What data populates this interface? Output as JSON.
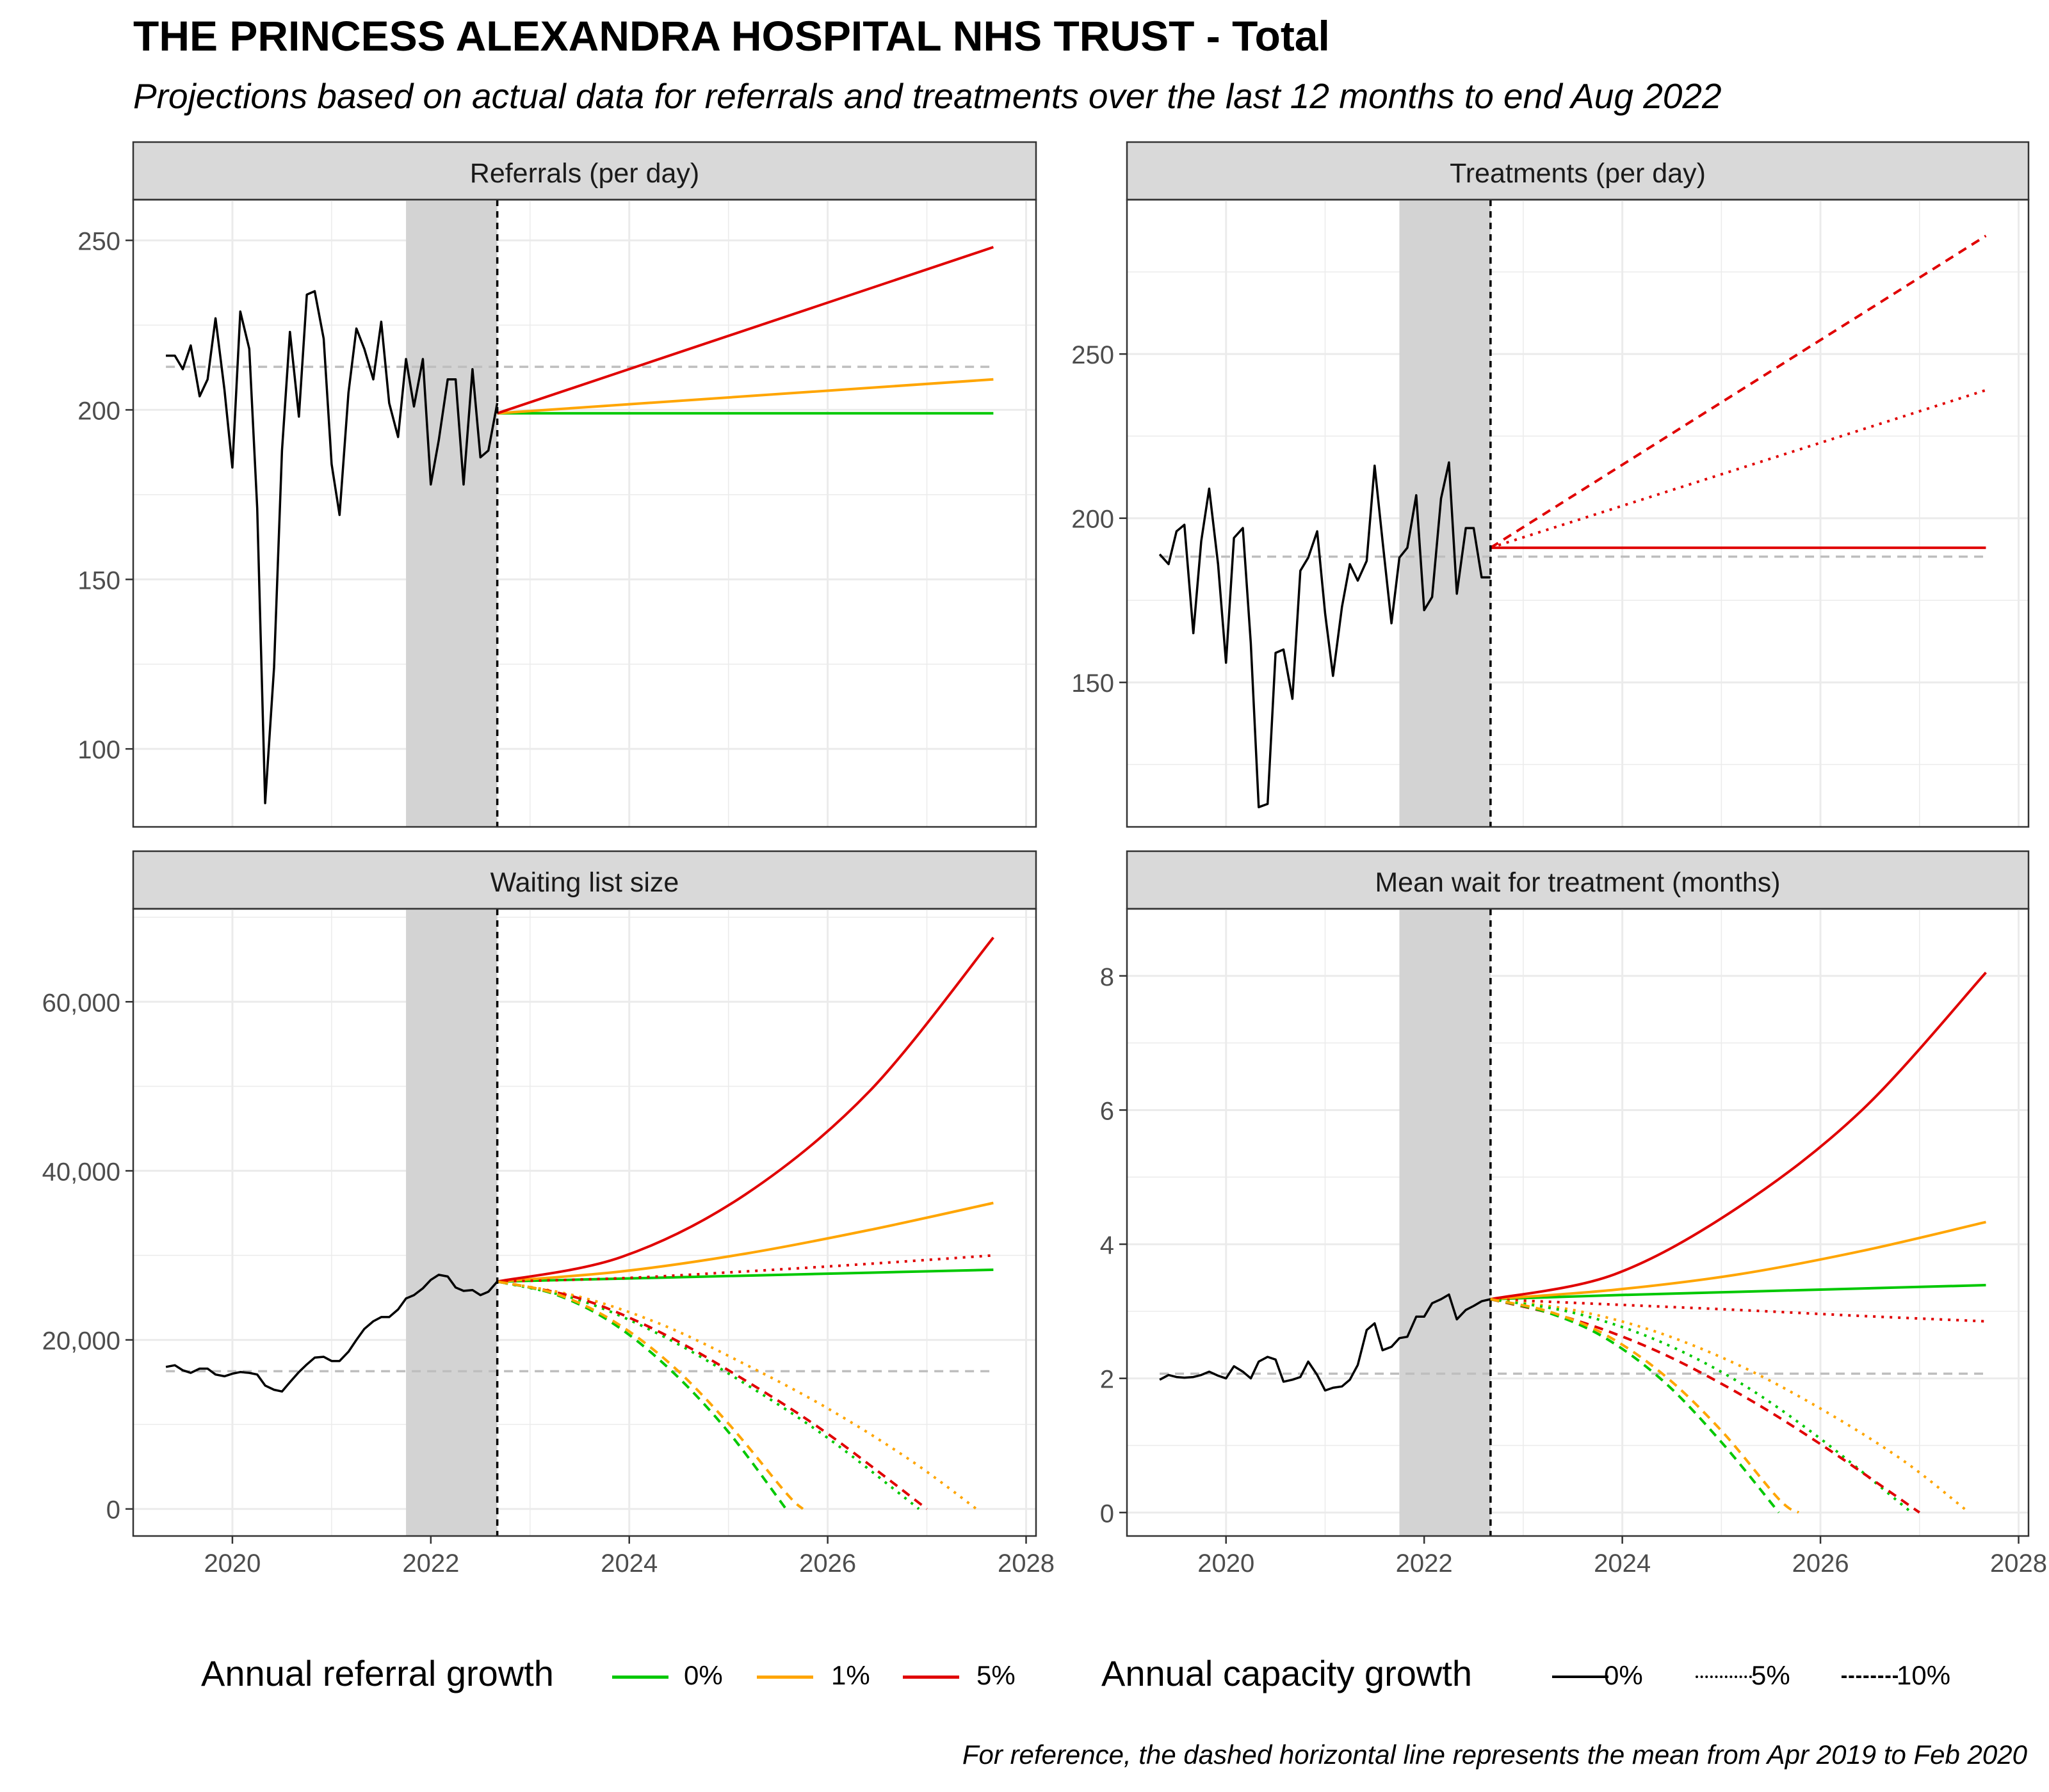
{
  "title": "THE PRINCESS ALEXANDRA HOSPITAL NHS TRUST - Total",
  "subtitle": "Projections based on actual data for referrals and treatments over the last 12 months to end Aug 2022",
  "caption": "For reference, the dashed horizontal line represents the mean from Apr 2019 to Feb 2020",
  "legend": {
    "referral_title": "Annual referral growth",
    "referral_items": [
      {
        "label": "0%",
        "color": "#00C800"
      },
      {
        "label": "1%",
        "color": "#FFA500"
      },
      {
        "label": "5%",
        "color": "#E00000"
      }
    ],
    "capacity_title": "Annual capacity growth",
    "capacity_items": [
      {
        "label": "0%",
        "linetype": "solid"
      },
      {
        "label": "5%",
        "linetype": "dotted"
      },
      {
        "label": "10%",
        "linetype": "dashed"
      }
    ]
  },
  "chart_data": [
    {
      "type": "line",
      "title": "Referrals (per day)",
      "xlim": [
        2019.0,
        2028.1
      ],
      "ylim": [
        77,
        262
      ],
      "yticks": [
        100,
        150,
        200,
        250
      ],
      "xticks": [],
      "shade": [
        2021.75,
        2022.67
      ],
      "reference_mean": 212.7,
      "actual": {
        "x": [
          2019.33,
          2019.42,
          2019.5,
          2019.58,
          2019.67,
          2019.75,
          2019.83,
          2019.92,
          2020.0,
          2020.08,
          2020.17,
          2020.25,
          2020.33,
          2020.42,
          2020.5,
          2020.58,
          2020.67,
          2020.75,
          2020.83,
          2020.92,
          2021.0,
          2021.08,
          2021.17,
          2021.25,
          2021.33,
          2021.42,
          2021.5,
          2021.58,
          2021.67,
          2021.75,
          2021.83,
          2021.92,
          2022.0,
          2022.08,
          2022.17,
          2022.25,
          2022.33,
          2022.42,
          2022.5,
          2022.58,
          2022.67
        ],
        "y": [
          216,
          216,
          212,
          219,
          204,
          209,
          227,
          206,
          183,
          229,
          218,
          171,
          84,
          124,
          188,
          223,
          198,
          234,
          235,
          221,
          184,
          169,
          205,
          224,
          218,
          209,
          226,
          202,
          192,
          215,
          201,
          215,
          178,
          191,
          209,
          209,
          178,
          212,
          186,
          188,
          202
        ]
      },
      "series": [
        {
          "name": "0%",
          "capacity": "0%",
          "x": [
            2022.67,
            2027.67
          ],
          "y": [
            199,
            199
          ]
        },
        {
          "name": "1%",
          "capacity": "0%",
          "x": [
            2022.67,
            2027.67
          ],
          "y": [
            199,
            209
          ]
        },
        {
          "name": "5%",
          "capacity": "0%",
          "x": [
            2022.67,
            2027.67
          ],
          "y": [
            199,
            248
          ]
        }
      ]
    },
    {
      "type": "line",
      "title": "Treatments (per day)",
      "xlim": [
        2019.0,
        2028.1
      ],
      "ylim": [
        106,
        297
      ],
      "yticks": [
        150,
        200,
        250
      ],
      "xticks": [],
      "shade": [
        2021.75,
        2022.67
      ],
      "reference_mean": 188.3,
      "actual": {
        "x": [
          2019.33,
          2019.42,
          2019.5,
          2019.58,
          2019.67,
          2019.75,
          2019.83,
          2019.92,
          2020.0,
          2020.08,
          2020.17,
          2020.25,
          2020.33,
          2020.42,
          2020.5,
          2020.58,
          2020.67,
          2020.75,
          2020.83,
          2020.92,
          2021.0,
          2021.08,
          2021.17,
          2021.25,
          2021.33,
          2021.42,
          2021.5,
          2021.58,
          2021.67,
          2021.75,
          2021.83,
          2021.92,
          2022.0,
          2022.08,
          2022.17,
          2022.25,
          2022.33,
          2022.42,
          2022.5,
          2022.58,
          2022.67
        ],
        "y": [
          189,
          186,
          196,
          198,
          165,
          193,
          209,
          186,
          156,
          194,
          197,
          162,
          112,
          113,
          159,
          160,
          145,
          184,
          188,
          196,
          171,
          152,
          173,
          186,
          181,
          187,
          216,
          193,
          168,
          188,
          191,
          207,
          172,
          176,
          206,
          217,
          177,
          197,
          197,
          182,
          182
        ]
      },
      "series": [
        {
          "name": "5%",
          "capacity": "0%",
          "x": [
            2022.67,
            2027.67
          ],
          "y": [
            191,
            191
          ]
        },
        {
          "name": "5%",
          "capacity": "5%",
          "x": [
            2022.67,
            2027.67
          ],
          "y": [
            191,
            239
          ]
        },
        {
          "name": "5%",
          "capacity": "10%",
          "x": [
            2022.67,
            2027.67
          ],
          "y": [
            191,
            286
          ]
        }
      ]
    },
    {
      "type": "line",
      "title": "Waiting list size",
      "xlim": [
        2019.0,
        2028.1
      ],
      "ylim": [
        -3200,
        71000
      ],
      "yticks": [
        0,
        20000,
        40000,
        60000
      ],
      "xticks": [
        2020,
        2022,
        2024,
        2026,
        2028
      ],
      "shade": [
        2021.75,
        2022.67
      ],
      "reference_mean": 16300,
      "actual": {
        "x": [
          2019.33,
          2019.42,
          2019.5,
          2019.58,
          2019.67,
          2019.75,
          2019.83,
          2019.92,
          2020.0,
          2020.08,
          2020.17,
          2020.25,
          2020.33,
          2020.42,
          2020.5,
          2020.58,
          2020.67,
          2020.75,
          2020.83,
          2020.92,
          2021.0,
          2021.08,
          2021.17,
          2021.25,
          2021.33,
          2021.42,
          2021.5,
          2021.58,
          2021.67,
          2021.75,
          2021.83,
          2021.92,
          2022.0,
          2022.08,
          2022.17,
          2022.25,
          2022.33,
          2022.42,
          2022.5,
          2022.58,
          2022.67
        ],
        "y": [
          16800,
          17000,
          16400,
          16100,
          16600,
          16600,
          15900,
          15700,
          16000,
          16200,
          16100,
          15900,
          14600,
          14100,
          13900,
          15000,
          16200,
          17100,
          17900,
          18000,
          17500,
          17500,
          18600,
          20000,
          21300,
          22200,
          22700,
          22700,
          23600,
          24900,
          25300,
          26100,
          27100,
          27700,
          27500,
          26200,
          25800,
          25900,
          25300,
          25700,
          26900
        ]
      },
      "series": [
        {
          "name": "0%",
          "capacity": "0%",
          "x": [
            2022.67,
            2023.92,
            2025.17,
            2026.42,
            2027.67
          ],
          "y": [
            26900,
            27250,
            27600,
            27950,
            28300
          ]
        },
        {
          "name": "1%",
          "capacity": "0%",
          "x": [
            2022.67,
            2023.92,
            2025.17,
            2026.42,
            2027.67
          ],
          "y": [
            26900,
            28100,
            30200,
            33000,
            36200
          ]
        },
        {
          "name": "5%",
          "capacity": "0%",
          "x": [
            2022.67,
            2023.92,
            2025.17,
            2026.42,
            2027.67
          ],
          "y": [
            26900,
            29800,
            37200,
            49400,
            67600
          ]
        },
        {
          "name": "5%",
          "capacity": "5%",
          "x": [
            2022.67,
            2023.92,
            2025.17,
            2026.42,
            2027.67
          ],
          "y": [
            26900,
            27300,
            28100,
            29000,
            30000
          ]
        },
        {
          "name": "0%",
          "capacity": "5%",
          "x": [
            2022.67,
            2023.5,
            2024.33,
            2025.17,
            2026.0,
            2026.92
          ],
          "y": [
            26900,
            24700,
            20500,
            14800,
            8400,
            0
          ]
        },
        {
          "name": "1%",
          "capacity": "5%",
          "x": [
            2022.67,
            2023.5,
            2024.33,
            2025.17,
            2026.0,
            2026.83,
            2027.5
          ],
          "y": [
            26900,
            25100,
            21800,
            17100,
            11900,
            5800,
            0
          ]
        },
        {
          "name": "5%",
          "capacity": "10%",
          "x": [
            2022.67,
            2023.5,
            2024.33,
            2025.17,
            2026.0,
            2027.0
          ],
          "y": [
            26900,
            24900,
            20800,
            15200,
            8900,
            0
          ]
        },
        {
          "name": "0%",
          "capacity": "10%",
          "x": [
            2022.67,
            2023.25,
            2023.83,
            2024.42,
            2025.0,
            2025.58
          ],
          "y": [
            26900,
            25400,
            22000,
            16400,
            9100,
            0
          ]
        },
        {
          "name": "1%",
          "capacity": "10%",
          "x": [
            2022.67,
            2023.25,
            2023.83,
            2024.42,
            2025.0,
            2025.58,
            2025.75
          ],
          "y": [
            26900,
            25500,
            22300,
            17100,
            10100,
            1900,
            0
          ]
        }
      ]
    },
    {
      "type": "line",
      "title": "Mean wait for treatment (months)",
      "xlim": [
        2019.0,
        2028.1
      ],
      "ylim": [
        -0.35,
        9.0
      ],
      "yticks": [
        0,
        2,
        4,
        6,
        8
      ],
      "xticks": [
        2020,
        2022,
        2024,
        2026,
        2028
      ],
      "shade": [
        2021.75,
        2022.67
      ],
      "reference_mean": 2.07,
      "actual": {
        "x": [
          2019.33,
          2019.42,
          2019.5,
          2019.58,
          2019.67,
          2019.75,
          2019.83,
          2019.92,
          2020.0,
          2020.08,
          2020.17,
          2020.25,
          2020.33,
          2020.42,
          2020.5,
          2020.58,
          2020.67,
          2020.75,
          2020.83,
          2020.92,
          2021.0,
          2021.08,
          2021.17,
          2021.25,
          2021.33,
          2021.42,
          2021.5,
          2021.58,
          2021.67,
          2021.75,
          2021.83,
          2021.92,
          2022.0,
          2022.08,
          2022.17,
          2022.25,
          2022.33,
          2022.42,
          2022.5,
          2022.58,
          2022.67
        ],
        "y": [
          1.98,
          2.05,
          2.02,
          2.01,
          2.02,
          2.05,
          2.1,
          2.04,
          2.0,
          2.18,
          2.1,
          2.0,
          2.25,
          2.32,
          2.28,
          1.95,
          1.98,
          2.02,
          2.25,
          2.05,
          1.82,
          1.86,
          1.88,
          1.98,
          2.2,
          2.72,
          2.82,
          2.42,
          2.47,
          2.6,
          2.62,
          2.92,
          2.92,
          3.12,
          3.18,
          3.25,
          2.88,
          3.02,
          3.08,
          3.15,
          3.18
        ]
      },
      "series": [
        {
          "name": "0%",
          "capacity": "0%",
          "x": [
            2022.67,
            2023.92,
            2025.17,
            2026.42,
            2027.67
          ],
          "y": [
            3.18,
            3.24,
            3.29,
            3.34,
            3.39
          ]
        },
        {
          "name": "1%",
          "capacity": "0%",
          "x": [
            2022.67,
            2023.92,
            2025.17,
            2026.42,
            2027.67
          ],
          "y": [
            3.18,
            3.32,
            3.55,
            3.9,
            4.33
          ]
        },
        {
          "name": "5%",
          "capacity": "0%",
          "x": [
            2022.67,
            2023.92,
            2025.17,
            2026.42,
            2027.67
          ],
          "y": [
            3.18,
            3.55,
            4.55,
            6.0,
            8.05
          ]
        },
        {
          "name": "5%",
          "capacity": "5%",
          "x": [
            2022.67,
            2023.92,
            2025.17,
            2026.42,
            2027.67
          ],
          "y": [
            3.18,
            3.1,
            3.02,
            2.93,
            2.85
          ]
        },
        {
          "name": "1%",
          "capacity": "5%",
          "x": [
            2022.67,
            2023.5,
            2024.33,
            2025.17,
            2026.0,
            2026.83,
            2027.5
          ],
          "y": [
            3.18,
            3.02,
            2.7,
            2.2,
            1.55,
            0.78,
            0
          ]
        },
        {
          "name": "0%",
          "capacity": "5%",
          "x": [
            2022.67,
            2023.5,
            2024.33,
            2025.17,
            2026.0,
            2026.92
          ],
          "y": [
            3.18,
            2.98,
            2.58,
            1.95,
            1.1,
            0
          ]
        },
        {
          "name": "5%",
          "capacity": "10%",
          "x": [
            2022.67,
            2023.5,
            2024.33,
            2025.17,
            2026.0,
            2027.0
          ],
          "y": [
            3.18,
            2.88,
            2.42,
            1.78,
            1.02,
            0
          ]
        },
        {
          "name": "0%",
          "capacity": "10%",
          "x": [
            2022.67,
            2023.25,
            2023.83,
            2024.42,
            2025.0,
            2025.58
          ],
          "y": [
            3.18,
            2.98,
            2.6,
            1.95,
            1.05,
            0
          ]
        },
        {
          "name": "1%",
          "capacity": "10%",
          "x": [
            2022.67,
            2023.25,
            2023.83,
            2024.42,
            2025.0,
            2025.58,
            2025.78
          ],
          "y": [
            3.18,
            3.0,
            2.65,
            2.05,
            1.22,
            0.2,
            0
          ]
        }
      ]
    }
  ]
}
